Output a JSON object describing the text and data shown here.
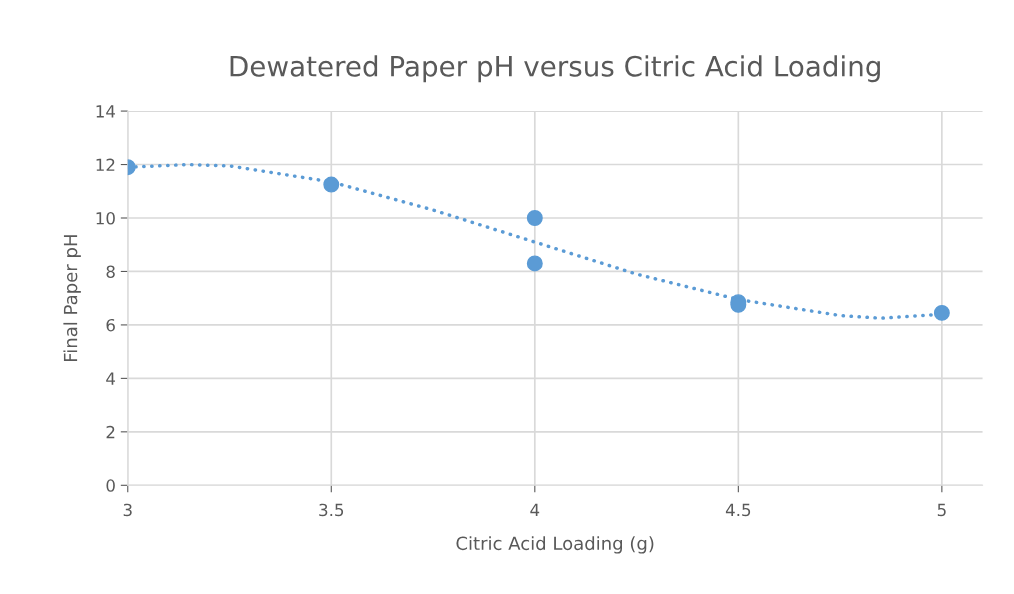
{
  "chart_data": {
    "type": "scatter",
    "title": "Dewatered Paper pH versus Citric Acid Loading",
    "xlabel": "Citric Acid Loading (g)",
    "ylabel": "Final Paper pH",
    "series": [
      {
        "color": "#5b9bd5",
        "marker": "circle",
        "x": [
          3,
          3.5,
          4,
          4,
          4.5,
          4.5,
          5
        ],
        "values": [
          11.9,
          11.25,
          10.0,
          8.3,
          6.85,
          6.75,
          6.45
        ]
      },
      {
        "type": "line",
        "color": "#5b9bd5",
        "line_style": "dotted",
        "marker": "none",
        "x": [
          3,
          3.15,
          3.25,
          3.5,
          3.75,
          4,
          4.25,
          4.5,
          4.75,
          4.85,
          5
        ],
        "values": [
          11.9,
          12.0,
          11.95,
          11.35,
          10.3,
          9.1,
          7.9,
          6.95,
          6.35,
          6.25,
          6.4
        ]
      }
    ],
    "xlim": [
      3,
      5.1
    ],
    "xticks": [
      3,
      3.5,
      4,
      4.5,
      5
    ],
    "ylim": [
      0,
      14
    ],
    "yticks": [
      0,
      2,
      4,
      6,
      8,
      10,
      12,
      14
    ],
    "grid": true,
    "legend": false
  }
}
